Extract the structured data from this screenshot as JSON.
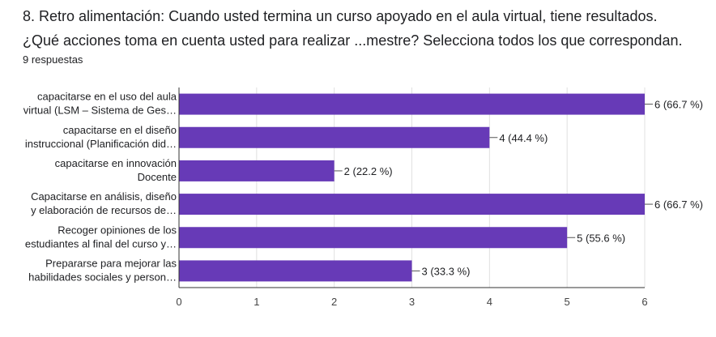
{
  "header": {
    "title_line_1": "8.    Retro alimentación: Cuando usted termina un curso apoyado en el aula virtual, tiene resultados.",
    "title_line_2": "¿Qué acciones toma en cuenta usted para realizar ...mestre?   Selecciona todos los que correspondan.",
    "responses": "9 respuestas"
  },
  "colors": {
    "bar": "#673ab7",
    "grid": "#e0e0e0",
    "axis": "#333333"
  },
  "chart_data": {
    "type": "bar",
    "orientation": "horizontal",
    "categories": [
      [
        "capacitarse en el uso del aula",
        "virtual (LSM – Sistema de Ges…"
      ],
      [
        "capacitarse en el diseño",
        "instruccional (Planificación did…"
      ],
      [
        "capacitarse en innovación",
        "Docente"
      ],
      [
        "Capacitarse en análisis, diseño",
        "y elaboración de recursos de…"
      ],
      [
        "Recoger opiniones de los",
        "estudiantes al final del curso y…"
      ],
      [
        "Prepararse para mejorar las",
        "habilidades sociales y person…"
      ]
    ],
    "values": [
      6,
      4,
      2,
      6,
      5,
      3
    ],
    "data_labels": [
      "6 (66.7 %)",
      "4 (44.4 %)",
      "2 (22.2 %)",
      "6 (66.7 %)",
      "5 (55.6 %)",
      "3 (33.3 %)"
    ],
    "xlim": [
      0,
      6
    ],
    "xticks": [
      "0",
      "1",
      "2",
      "3",
      "4",
      "5",
      "6"
    ],
    "grid": true,
    "xlabel": "",
    "ylabel": ""
  }
}
